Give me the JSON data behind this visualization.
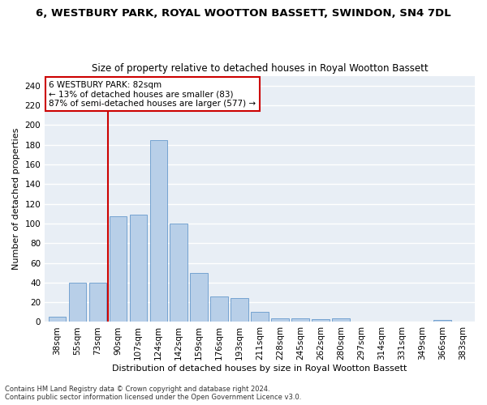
{
  "title_line1": "6, WESTBURY PARK, ROYAL WOOTTON BASSETT, SWINDON, SN4 7DL",
  "title_line2": "Size of property relative to detached houses in Royal Wootton Bassett",
  "xlabel": "Distribution of detached houses by size in Royal Wootton Bassett",
  "ylabel": "Number of detached properties",
  "categories": [
    "38sqm",
    "55sqm",
    "73sqm",
    "90sqm",
    "107sqm",
    "124sqm",
    "142sqm",
    "159sqm",
    "176sqm",
    "193sqm",
    "211sqm",
    "228sqm",
    "245sqm",
    "262sqm",
    "280sqm",
    "297sqm",
    "314sqm",
    "331sqm",
    "349sqm",
    "366sqm",
    "383sqm"
  ],
  "values": [
    5,
    40,
    40,
    107,
    109,
    185,
    100,
    50,
    26,
    24,
    10,
    4,
    4,
    3,
    4,
    0,
    0,
    0,
    0,
    2,
    0
  ],
  "bar_color": "#b8cfe8",
  "bar_edgecolor": "#6699cc",
  "vline_color": "#cc0000",
  "annotation_text": "6 WESTBURY PARK: 82sqm\n← 13% of detached houses are smaller (83)\n87% of semi-detached houses are larger (577) →",
  "annotation_boxcolor": "white",
  "annotation_edgecolor": "#cc0000",
  "footer1": "Contains HM Land Registry data © Crown copyright and database right 2024.",
  "footer2": "Contains public sector information licensed under the Open Government Licence v3.0.",
  "ylim": [
    0,
    250
  ],
  "yticks": [
    0,
    20,
    40,
    60,
    80,
    100,
    120,
    140,
    160,
    180,
    200,
    220,
    240
  ],
  "bg_color": "#e8eef5",
  "grid_color": "white",
  "title1_fontsize": 9.5,
  "title2_fontsize": 8.5,
  "xlabel_fontsize": 8,
  "ylabel_fontsize": 8,
  "tick_fontsize": 7.5,
  "annot_fontsize": 7.5,
  "footer_fontsize": 6
}
